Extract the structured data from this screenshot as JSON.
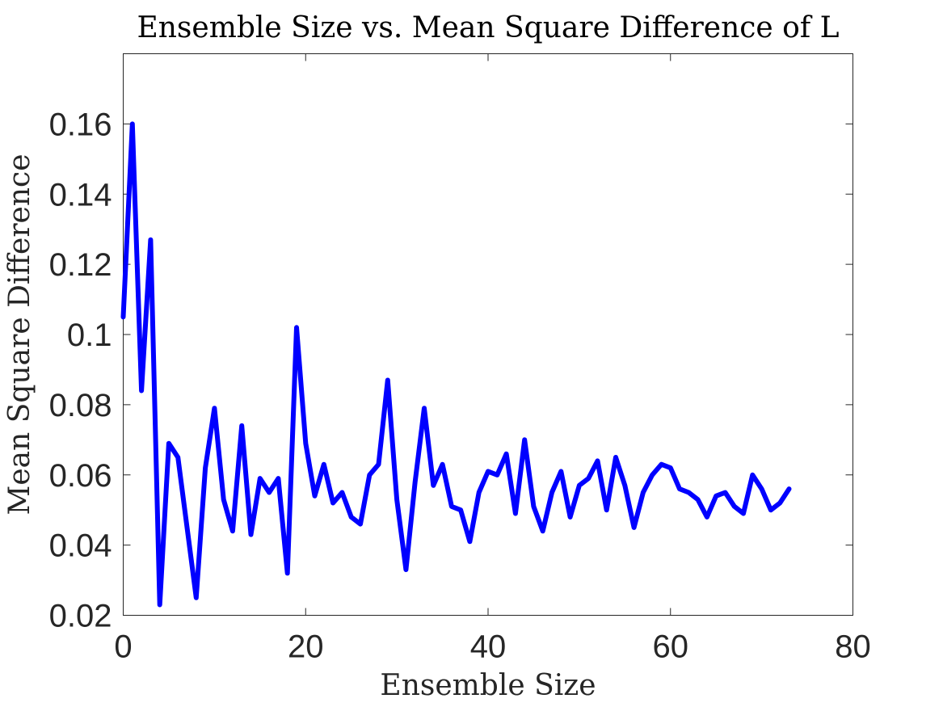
{
  "chart_data": {
    "type": "line",
    "title": "Ensemble Size vs. Mean Square Difference of L",
    "xlabel": "Ensemble Size",
    "ylabel": "Mean Square Difference",
    "xlim": [
      0,
      80
    ],
    "ylim": [
      0.02,
      0.18
    ],
    "xticks": [
      0,
      20,
      40,
      60,
      80
    ],
    "xtick_labels": [
      "0",
      "20",
      "40",
      "60",
      "80"
    ],
    "yticks": [
      0.02,
      0.04,
      0.06,
      0.08,
      0.1,
      0.12,
      0.14,
      0.16
    ],
    "ytick_labels": [
      "0.02",
      "0.04",
      "0.06",
      "0.08",
      "0.1",
      "0.12",
      "0.14",
      "0.16"
    ],
    "grid": false,
    "legend": "none",
    "series": [
      {
        "color": "#0000ff",
        "x": [
          0,
          1,
          2,
          3,
          4,
          5,
          6,
          7,
          8,
          9,
          10,
          11,
          12,
          13,
          14,
          15,
          16,
          17,
          18,
          19,
          20,
          21,
          22,
          23,
          24,
          25,
          26,
          27,
          28,
          29,
          30,
          31,
          32,
          33,
          34,
          35,
          36,
          37,
          38,
          39,
          40,
          41,
          42,
          43,
          44,
          45,
          46,
          47,
          48,
          49,
          50,
          51,
          52,
          53,
          54,
          55,
          56,
          57,
          58,
          59,
          60,
          61,
          62,
          63,
          64,
          65,
          66,
          67,
          68,
          69,
          70,
          71,
          72,
          73
        ],
        "y": [
          0.105,
          0.16,
          0.084,
          0.127,
          0.023,
          0.069,
          0.065,
          0.045,
          0.025,
          0.062,
          0.079,
          0.053,
          0.044,
          0.074,
          0.043,
          0.059,
          0.055,
          0.059,
          0.032,
          0.102,
          0.069,
          0.054,
          0.063,
          0.052,
          0.055,
          0.048,
          0.046,
          0.06,
          0.063,
          0.087,
          0.053,
          0.033,
          0.058,
          0.079,
          0.057,
          0.063,
          0.051,
          0.05,
          0.041,
          0.055,
          0.061,
          0.06,
          0.066,
          0.049,
          0.07,
          0.051,
          0.044,
          0.055,
          0.061,
          0.048,
          0.057,
          0.059,
          0.064,
          0.05,
          0.065,
          0.057,
          0.045,
          0.055,
          0.06,
          0.063,
          0.062,
          0.056,
          0.055,
          0.053,
          0.048,
          0.054,
          0.055,
          0.051,
          0.049,
          0.06,
          0.056,
          0.05,
          0.052,
          0.056
        ]
      }
    ]
  }
}
